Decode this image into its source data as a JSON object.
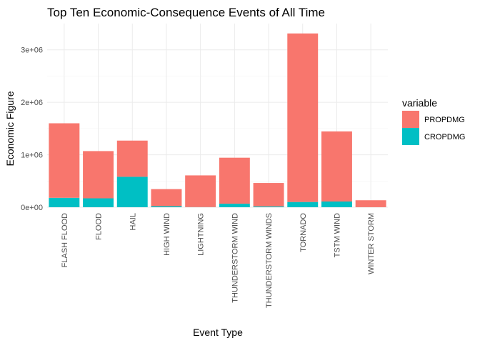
{
  "chart_data": {
    "type": "bar",
    "stacked": true,
    "title": "Top Ten Economic-Consequence Events of All Time",
    "xlabel": "Event Type",
    "ylabel": "Economic Figure",
    "categories": [
      "FLASH FLOOD",
      "FLOOD",
      "HAIL",
      "HIGH WIND",
      "LIGHTNING",
      "THUNDERSTORM WIND",
      "THUNDERSTORM WINDS",
      "TORNADO",
      "TSTM WIND",
      "WINTER STORM"
    ],
    "series": [
      {
        "name": "PROPDMG",
        "color": "#F8766D",
        "values": [
          1420000,
          900000,
          690000,
          325000,
          604000,
          877000,
          446000,
          3212000,
          1336000,
          132000
        ]
      },
      {
        "name": "CROPDMG",
        "color": "#00BFC4",
        "values": [
          180000,
          170000,
          580000,
          20000,
          3000,
          67000,
          16000,
          100000,
          109000,
          1000
        ]
      }
    ],
    "ylim": [
      0,
      3400000
    ],
    "yticks": [
      0,
      1000000,
      2000000,
      3000000
    ],
    "ytick_labels": [
      "0e+00",
      "1e+06",
      "2e+06",
      "3e+06"
    ],
    "grid": true,
    "legend": {
      "title": "variable",
      "position": "right",
      "order": [
        "PROPDMG",
        "CROPDMG"
      ]
    }
  }
}
